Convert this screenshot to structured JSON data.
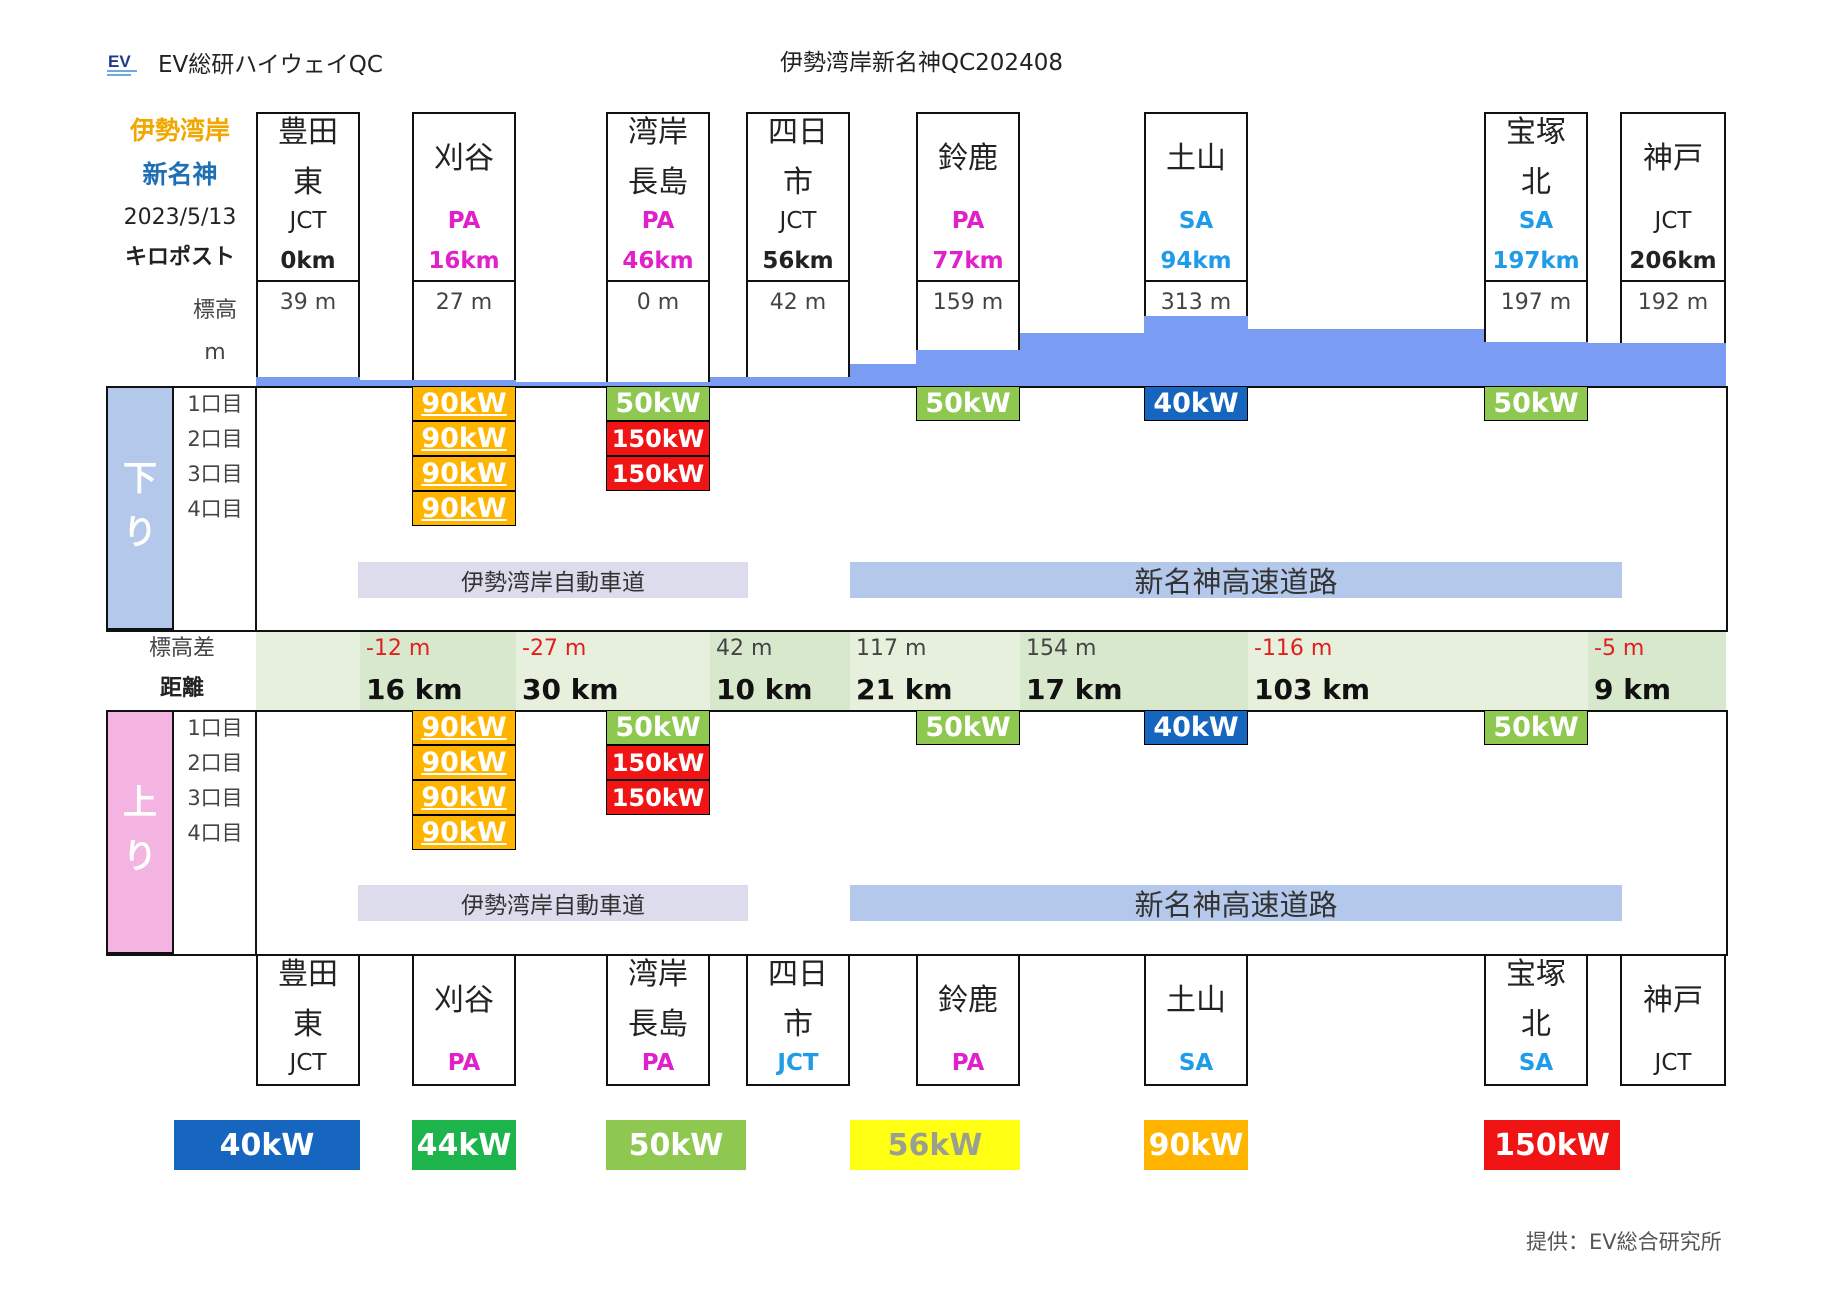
{
  "header": {
    "logo_text": "EV",
    "brand": "EV総研ハイウェイQC",
    "title": "伊勢湾岸新名神QC202408"
  },
  "left_info": {
    "route1": "伊勢湾岸",
    "route2": "新名神",
    "date": "2023/5/13",
    "kp_label": "キロポスト",
    "elev_label1": "標高",
    "elev_label2": "m"
  },
  "colors": {
    "route1": "#f0a800",
    "route2": "#1f6fb4",
    "pa": "#e020c8",
    "sa": "#1f9be8",
    "elevation": "#7a9cf2",
    "down_band": "#b4c8ec",
    "up_band": "#f4b4e2",
    "diff_band": "#e6f0dc",
    "neg_diff": "#e02020",
    "c40": "#1666c0",
    "c44": "#1eb44c",
    "c50": "#8ec850",
    "c56": "#ffff14",
    "c90": "#ffb400",
    "c150": "#f01414"
  },
  "stations": [
    {
      "id": "toyotahigashi",
      "name1": "豊田",
      "name2": "東",
      "type": "JCT",
      "km": "0km",
      "elev": "39 m",
      "elev_m": 39
    },
    {
      "id": "kariya",
      "name1": "刈谷",
      "name2": "",
      "type": "PA",
      "km": "16km",
      "elev": "27 m",
      "elev_m": 27
    },
    {
      "id": "wangannagashima",
      "name1": "湾岸",
      "name2": "長島",
      "type": "PA",
      "km": "46km",
      "elev": "0 m",
      "elev_m": 0
    },
    {
      "id": "yokkaichi",
      "name1": "四日",
      "name2": "市",
      "type": "JCT",
      "km": "56km",
      "elev": "42 m",
      "elev_m": 42
    },
    {
      "id": "suzuka",
      "name1": "鈴鹿",
      "name2": "",
      "type": "PA",
      "km": "77km",
      "elev": "159 m",
      "elev_m": 159
    },
    {
      "id": "tsuchiyama",
      "name1": "土山",
      "name2": "",
      "type": "SA",
      "km": "94km",
      "elev": "313 m",
      "elev_m": 313
    },
    {
      "id": "takarazukakita",
      "name1": "宝塚",
      "name2": "北",
      "type": "SA",
      "km": "197km",
      "elev": "197 m",
      "elev_m": 197
    },
    {
      "id": "kobe",
      "name1": "神戸",
      "name2": "",
      "type": "JCT",
      "km": "206km",
      "elev": "192 m",
      "elev_m": 192
    }
  ],
  "elevation_profile": [
    {
      "m": 39
    },
    {
      "m": 27
    },
    {
      "m": 27
    },
    {
      "m": 14
    },
    {
      "m": 0
    },
    {
      "m": 42
    },
    {
      "m": 42
    },
    {
      "m": 100
    },
    {
      "m": 159
    },
    {
      "m": 236
    },
    {
      "m": 313
    },
    {
      "m": 255
    },
    {
      "m": 197
    },
    {
      "m": 192
    },
    {
      "m": 192
    }
  ],
  "direction_down": {
    "label1": "下",
    "label2": "り",
    "ports": [
      "1口目",
      "2口目",
      "3口目",
      "4口目"
    ],
    "chargers": {
      "kariya": [
        "90kW",
        "90kW",
        "90kW",
        "90kW"
      ],
      "wangannagashima": [
        "50kW",
        "150kW",
        "150kW"
      ],
      "suzuka": [
        "50kW"
      ],
      "tsuchiyama": [
        "40kW"
      ],
      "takarazukakita": [
        "50kW"
      ]
    },
    "road1": "伊勢湾岸自動車道",
    "road2": "新名神高速道路"
  },
  "direction_up": {
    "label1": "上",
    "label2": "り",
    "ports": [
      "1口目",
      "2口目",
      "3口目",
      "4口目"
    ],
    "chargers": {
      "kariya": [
        "90kW",
        "90kW",
        "90kW",
        "90kW"
      ],
      "wangannagashima": [
        "50kW",
        "150kW",
        "150kW"
      ],
      "suzuka": [
        "50kW"
      ],
      "tsuchiyama": [
        "40kW"
      ],
      "takarazukakita": [
        "50kW"
      ]
    },
    "road1": "伊勢湾岸自動車道",
    "road2": "新名神高速道路"
  },
  "segments_label_elev": "標高差",
  "segments_label_dist": "距離",
  "segments": [
    {
      "diff": "-12 m",
      "dist": "16 km"
    },
    {
      "diff": "-27 m",
      "dist": "30 km"
    },
    {
      "diff": "42 m",
      "dist": "10 km"
    },
    {
      "diff": "117 m",
      "dist": "21 km"
    },
    {
      "diff": "154 m",
      "dist": "17 km"
    },
    {
      "diff": "-116 m",
      "dist": "103 km"
    },
    {
      "diff": "-5 m",
      "dist": "9 km"
    }
  ],
  "legend": [
    "40kW",
    "44kW",
    "50kW",
    "56kW",
    "90kW",
    "150kW"
  ],
  "footer": "提供：EV総合研究所"
}
